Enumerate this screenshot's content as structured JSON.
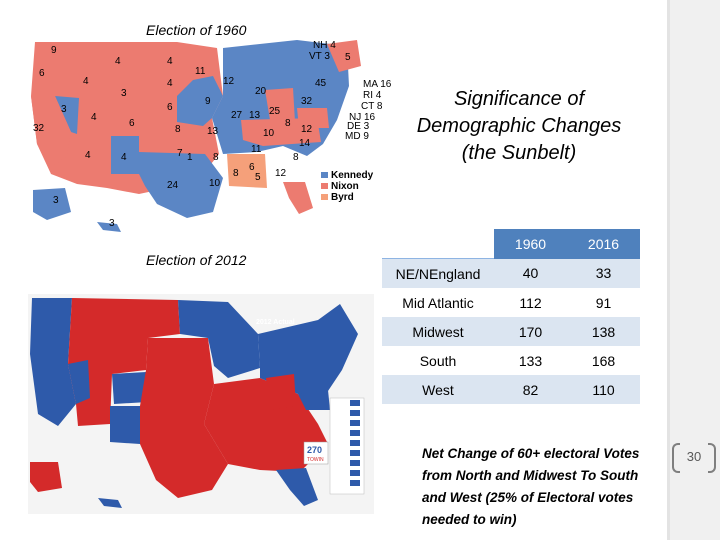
{
  "captions": {
    "map_1960": "Election of 1960",
    "map_2012": "Election of 2012"
  },
  "title": {
    "line1": "Significance of",
    "line2": "Demographic Changes",
    "line3": "(the Sunbelt)"
  },
  "map_1960": {
    "state_numbers": [
      "9",
      "4",
      "4",
      "6",
      "4",
      "4",
      "3",
      "11",
      "12",
      "20",
      "45",
      "5",
      "32",
      "6",
      "9",
      "32",
      "3",
      "4",
      "6",
      "8",
      "13",
      "27",
      "13",
      "25",
      "8",
      "12",
      "10",
      "14",
      "4",
      "4",
      "7",
      "1",
      "8",
      "11",
      "8",
      "24",
      "8",
      "6",
      "5",
      "12",
      "10",
      "3",
      "3"
    ],
    "east_labels": [
      "NH 4",
      "VT 3",
      "MA 16",
      "RI 4",
      "CT 8",
      "NJ 16",
      "DE 3",
      "MD 9"
    ],
    "legend": [
      {
        "label": "Kennedy",
        "color": "#5b86c5"
      },
      {
        "label": "Nixon",
        "color": "#ec7b70"
      },
      {
        "label": "Byrd",
        "color": "#f5a07a"
      }
    ]
  },
  "map_2012": {
    "header": "2012 Actual",
    "badge_top": "270",
    "badge_bottom": "TOWIN",
    "colors": {
      "dem": "#2e5aaa",
      "rep": "#d42a2a"
    }
  },
  "table": {
    "columns": [
      "",
      "1960",
      "2016"
    ],
    "header_color": "#4f81bd",
    "stripe_color": "#dbe5f1",
    "rows": [
      {
        "region": "NE/NEngland",
        "y1960": "40",
        "y2016": "33"
      },
      {
        "region": "Mid Atlantic",
        "y1960": "112",
        "y2016": "91"
      },
      {
        "region": "Midwest",
        "y1960": "170",
        "y2016": "138"
      },
      {
        "region": "South",
        "y1960": "133",
        "y2016": "168"
      },
      {
        "region": "West",
        "y1960": "82",
        "y2016": "110"
      }
    ]
  },
  "note": {
    "text": "Net Change of 60+ electoral Votes from North and Midwest To South and West (25% of Electoral votes needed to win)"
  },
  "page_number": "30"
}
